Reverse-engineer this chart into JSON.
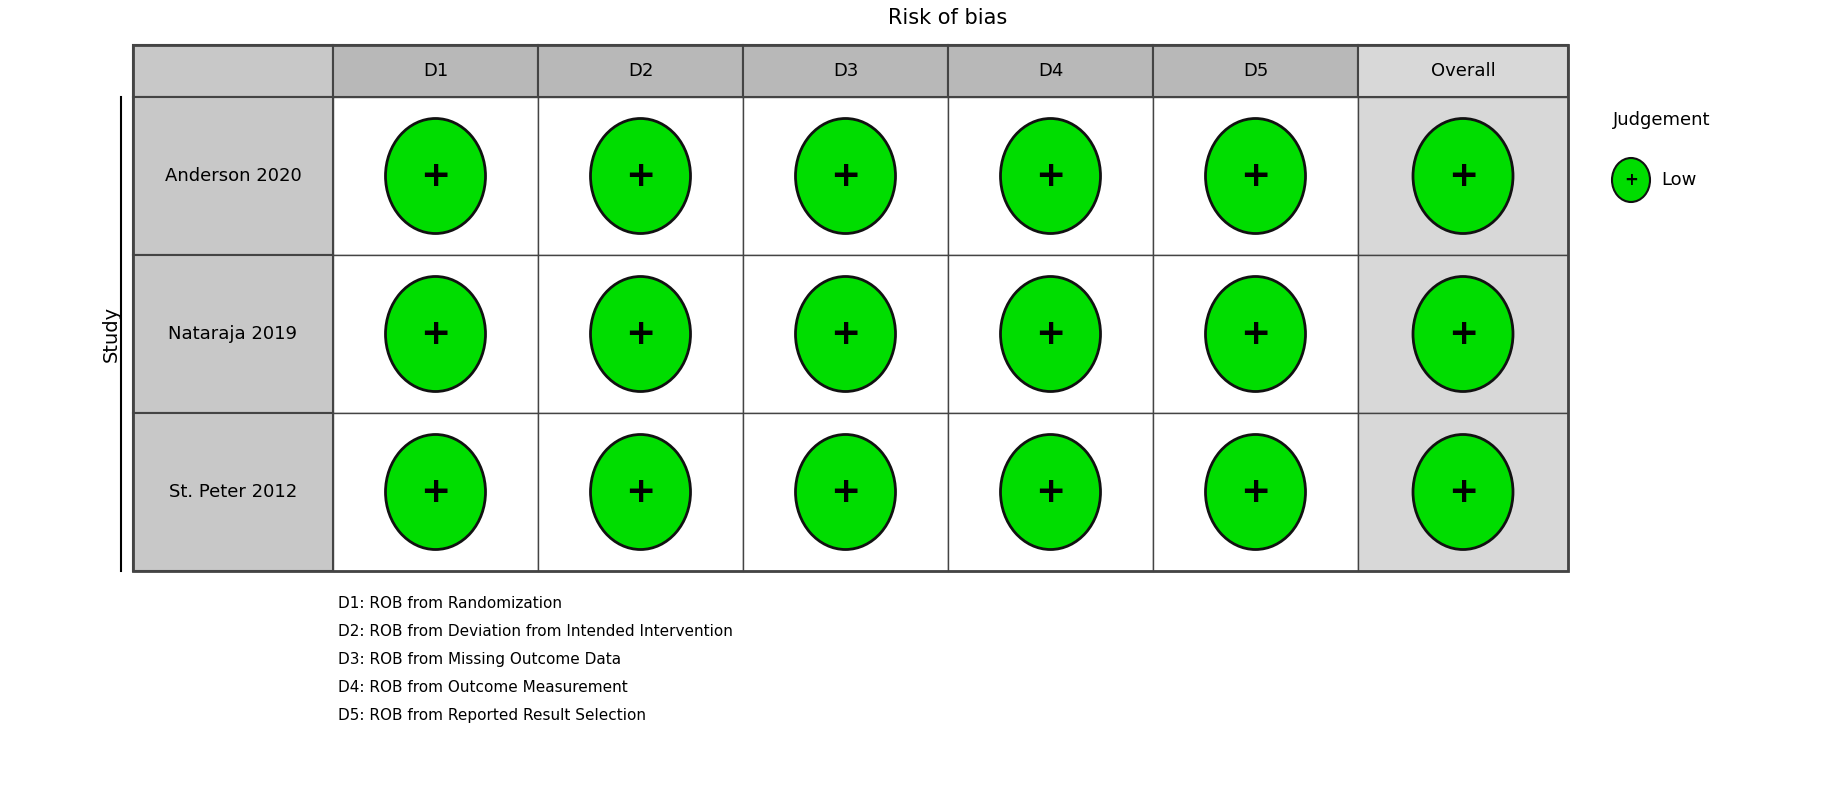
{
  "title": "Risk of bias",
  "col_headers": [
    "D1",
    "D2",
    "D3",
    "D4",
    "D5",
    "Overall"
  ],
  "row_headers": [
    "Anderson 2020",
    "Nataraja 2019",
    "St. Peter 2012"
  ],
  "y_label": "Study",
  "data": [
    [
      "low",
      "low",
      "low",
      "low",
      "low",
      "low"
    ],
    [
      "low",
      "low",
      "low",
      "low",
      "low",
      "low"
    ],
    [
      "low",
      "low",
      "low",
      "low",
      "low",
      "low"
    ]
  ],
  "color_map": {
    "low": "#00dd00"
  },
  "symbol_map": {
    "low": "+"
  },
  "footnotes": [
    "D1: ROB from Randomization",
    "D2: ROB from Deviation from Intended Intervention",
    "D3: ROB from Missing Outcome Data",
    "D4: ROB from Outcome Measurement",
    "D5: ROB from Reported Result Selection"
  ],
  "legend_title": "Judgement",
  "legend_items": [
    {
      "label": "Low",
      "color": "#00dd00",
      "symbol": "+"
    }
  ],
  "header_bg": "#b8b8b8",
  "row_label_bg": "#c8c8c8",
  "overall_col_bg": "#d8d8d8",
  "row_bg": "#ffffff",
  "border_color": "#444444",
  "title_fontsize": 15,
  "header_fontsize": 13,
  "row_label_fontsize": 13,
  "footnote_fontsize": 11,
  "legend_fontsize": 13,
  "fig_bg": "#ffffff"
}
